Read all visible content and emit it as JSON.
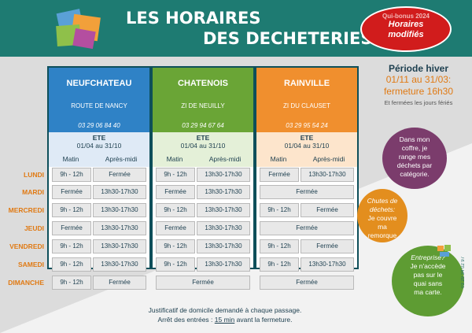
{
  "header": {
    "title_line1": "LES HORAIRES",
    "title_line2": "DES DECHETERIES",
    "badge_small": "Qui-bonus 2024",
    "badge_line1": "Horaires",
    "badge_line2": "modifiés"
  },
  "columns": [
    {
      "name": "NEUFCHATEAU",
      "address": "ROUTE DE NANCY",
      "phone": "03 29 06 84 40",
      "color": "#2f82c6",
      "season": "ETE",
      "dates": "01/04 au 31/10",
      "morning_label": "Matin",
      "afternoon_label": "Après-midi",
      "rows": [
        {
          "m": "9h - 12h",
          "a": "Fermée"
        },
        {
          "m": "Fermée",
          "a": "13h30-17h30"
        },
        {
          "m": "9h - 12h",
          "a": "13h30-17h30"
        },
        {
          "m": "Fermée",
          "a": "13h30-17h30"
        },
        {
          "m": "9h - 12h",
          "a": "13h30-17h30"
        },
        {
          "m": "9h - 12h",
          "a": "13h30-17h30"
        },
        {
          "m": "9h - 12h",
          "a": "Fermée"
        }
      ]
    },
    {
      "name": "CHATENOIS",
      "address": "ZI DE NEUILLY",
      "phone": "03 29 94 67 64",
      "color": "#6aa536",
      "season": "ETE",
      "dates": "01/04 au 31/10",
      "morning_label": "Matin",
      "afternoon_label": "Après-midi",
      "rows": [
        {
          "m": "9h - 12h",
          "a": "13h30-17h30"
        },
        {
          "m": "Fermée",
          "a": "13h30-17h30"
        },
        {
          "m": "9h - 12h",
          "a": "13h30-17h30"
        },
        {
          "m": "Fermée",
          "a": "13h30-17h30"
        },
        {
          "m": "9h - 12h",
          "a": "13h30-17h30"
        },
        {
          "m": "9h - 12h",
          "a": "13h30-17h30"
        },
        {
          "full": "Fermée"
        }
      ]
    },
    {
      "name": "RAINVILLE",
      "address": "ZI DU CLAUSET",
      "phone": "03 29 95 54 24",
      "color": "#f08f2e",
      "season": "ETE",
      "dates": "01/04 au 31/10",
      "morning_label": "Matin",
      "afternoon_label": "Après-midi",
      "rows": [
        {
          "m": "Fermée",
          "a": "13h30-17h30"
        },
        {
          "full": "Fermée"
        },
        {
          "m": "9h - 12h",
          "a": "Fermée"
        },
        {
          "full": "Fermée"
        },
        {
          "m": "9h - 12h",
          "a": "Fermée"
        },
        {
          "m": "9h - 12h",
          "a": "13h30-17h30"
        },
        {
          "full": "Fermée"
        }
      ]
    }
  ],
  "days": [
    "LUNDI",
    "MARDI",
    "MERCREDI",
    "JEUDI",
    "VENDREDI",
    "SAMEDI",
    "DIMANCHE"
  ],
  "winter": {
    "title": "Période hiver",
    "dates": "01/11 au 31/03:",
    "closing": "fermeture 16h30",
    "note": "Et fermées les jours fériés"
  },
  "bubbles": {
    "purple": [
      "Dans mon",
      "coffre, je",
      "range mes",
      "déchets par",
      "catégorie."
    ],
    "orange_title": "Chutes de déchets:",
    "orange": [
      "Je couvre",
      "ma",
      "remorque"
    ],
    "green_title": "Entreprise?",
    "green": [
      "Je n'accède",
      "pas sur le",
      "quai sans",
      "ma carte."
    ]
  },
  "footer": {
    "line1": "Justificatif de domicile demandé à chaque passage.",
    "line2_before": "Arrêt des entrées : ",
    "line2_underlined": "15 min",
    "line2_after": " avant la fermeture."
  },
  "side_phone": "03 29 34 02 97",
  "colors": {
    "header": "#1e7b72",
    "accent": "#e07a14",
    "badge": "#d11c1c"
  }
}
